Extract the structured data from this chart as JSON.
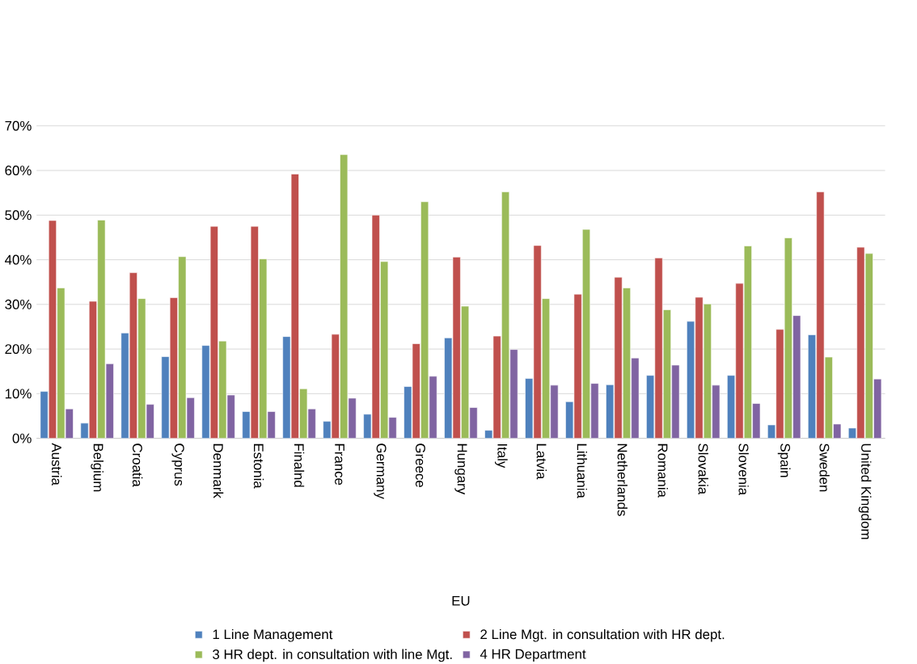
{
  "chart_data": {
    "type": "bar",
    "xlabel": "EU",
    "categories": [
      "Austria",
      "Belgium",
      "Croatia",
      "Cyprus",
      "Denmark",
      "Estonia",
      "Finalnd",
      "France",
      "Germany",
      "Greece",
      "Hungary",
      "Italy",
      "Latvia",
      "Lithuania",
      "Netherlands",
      "Romania",
      "Slovakia",
      "Slovenia",
      "Spain",
      "Sweden",
      "United Kingdom"
    ],
    "series": [
      {
        "name": "1 Line Management",
        "color": "#4f81bd",
        "values": [
          10.5,
          3.4,
          23.6,
          18.3,
          20.8,
          6.0,
          22.8,
          3.8,
          5.4,
          11.6,
          22.5,
          1.8,
          13.4,
          8.2,
          12.0,
          14.1,
          26.2,
          14.1,
          3.0,
          23.2,
          2.3
        ]
      },
      {
        "name": "2 Line Mgt. in consultation with HR dept.",
        "color": "#c0504d",
        "values": [
          48.8,
          30.7,
          37.1,
          31.5,
          47.5,
          47.5,
          59.2,
          23.3,
          50.0,
          21.2,
          40.6,
          22.9,
          43.2,
          32.3,
          36.1,
          40.4,
          31.6,
          34.7,
          24.4,
          55.2,
          42.8
        ]
      },
      {
        "name": "3 HR dept. in consultation with line Mgt.",
        "color": "#9bbb59",
        "values": [
          33.7,
          48.9,
          31.3,
          40.7,
          21.8,
          40.2,
          11.1,
          63.6,
          39.6,
          53.0,
          29.6,
          55.2,
          31.3,
          46.8,
          33.7,
          28.8,
          30.1,
          43.1,
          44.9,
          18.2,
          41.4
        ]
      },
      {
        "name": "4 HR  Department",
        "color": "#8064a2",
        "values": [
          6.6,
          16.7,
          7.6,
          9.1,
          9.7,
          6.0,
          6.6,
          9.0,
          4.7,
          13.9,
          6.9,
          19.9,
          11.9,
          12.3,
          18.0,
          16.4,
          11.9,
          7.8,
          27.5,
          3.2,
          13.3
        ]
      }
    ],
    "ylim": [
      0,
      70
    ],
    "yticks": [
      {
        "value": 0,
        "label": "0%"
      },
      {
        "value": 10,
        "label": "10%"
      },
      {
        "value": 20,
        "label": "20%"
      },
      {
        "value": 30,
        "label": "30%"
      },
      {
        "value": 40,
        "label": "40%"
      },
      {
        "value": 50,
        "label": "50%"
      },
      {
        "value": 60,
        "label": "60%"
      },
      {
        "value": 70,
        "label": "70%"
      }
    ],
    "grid": "y",
    "legend": "bottom"
  }
}
